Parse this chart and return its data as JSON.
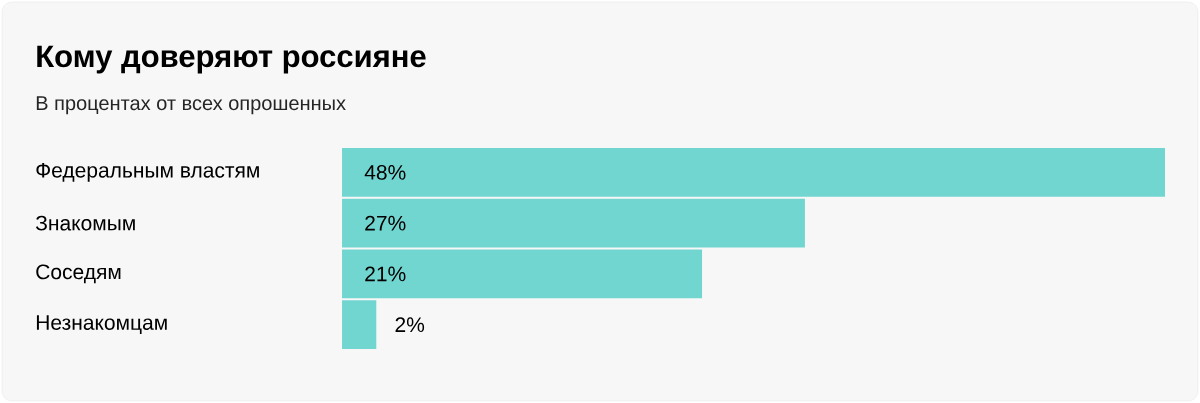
{
  "chart_data": {
    "type": "bar",
    "orientation": "horizontal",
    "title": "Кому доверяют россияне",
    "subtitle": "В процентах от всех опрошенных",
    "categories": [
      "Федеральным властям",
      "Знакомым",
      "Соседям",
      "Незнакомцам"
    ],
    "values": [
      48,
      27,
      21,
      2
    ],
    "value_labels": [
      "48%",
      "27%",
      "21%",
      "2%"
    ],
    "color": "#72d6d0"
  }
}
